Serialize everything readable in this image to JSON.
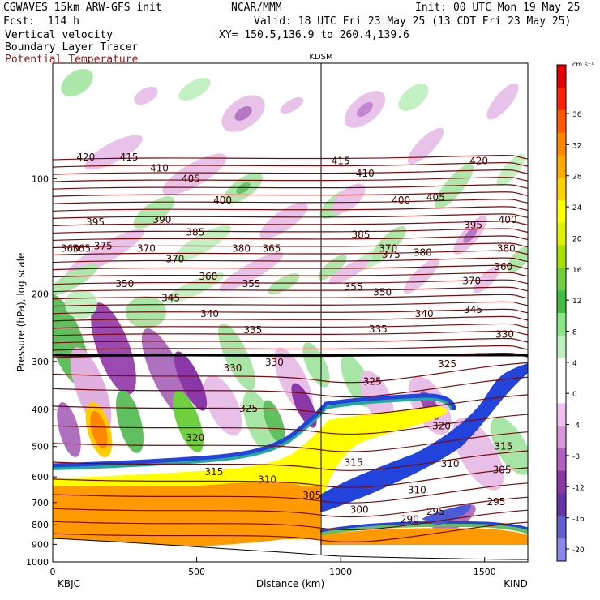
{
  "header": {
    "model": "CGWAVES 15km ARW-GFS init",
    "org": "NCAR/MMM",
    "init": "Init: 00 UTC Mon 19 May 25",
    "fcst": "Fcst:  114 h",
    "valid": "Valid: 18 UTC Fri 23 May 25 (13 CDT Fri 23 May 25)",
    "field1": "Vertical velocity",
    "xy": "XY= 150.5,136.9 to 260.4,139.6",
    "field2": "Boundary Layer Tracer",
    "field3": "Potential Temperature"
  },
  "colors": {
    "theta": "#7a0a0a",
    "orange": "#ff9900",
    "blue_plume": "#2244dd",
    "purple": "#9940b0"
  },
  "chart_data": {
    "type": "cross-section",
    "title": "",
    "xlabel": "Distance (km)",
    "ylabel": "Pressure (hPa), log scale",
    "x_ticks": [
      "0",
      "500",
      "1000",
      "1500"
    ],
    "y_ticks": [
      "100",
      "200",
      "300",
      "400",
      "500",
      "600",
      "700",
      "800",
      "900",
      "1000"
    ],
    "xlim": [
      0,
      1650
    ],
    "ylim": [
      1000,
      50
    ],
    "y_scale": "log",
    "left_label": "KBJC",
    "right_label": "KIND",
    "marker_label": "KDSM",
    "marker_x_km": 935,
    "colorbar": {
      "unit": "cm s⁻¹",
      "tick_labels": [
        "36",
        "32",
        "28",
        "24",
        "20",
        "16",
        "12",
        "8",
        "4",
        "0",
        "-4",
        "-8",
        "-12",
        "-16",
        "-20"
      ],
      "colors": [
        "#e00000",
        "#ff2200",
        "#ff5a00",
        "#ff8800",
        "#ffaa00",
        "#ffd000",
        "#ffff00",
        "#ddf000",
        "#a8e000",
        "#70d040",
        "#40c040",
        "#88e888",
        "#bff0bf",
        "#ffffff",
        "#ffffff",
        "#f0c0f0",
        "#d898d8",
        "#b060c0",
        "#8a38a8",
        "#6633aa",
        "#6060d0",
        "#8888ee"
      ]
    },
    "theta_labels": [
      {
        "x": 115,
        "p": 88,
        "v": "420"
      },
      {
        "x": 265,
        "p": 88,
        "v": "415"
      },
      {
        "x": 370,
        "p": 94,
        "v": "410"
      },
      {
        "x": 480,
        "p": 100,
        "v": "405"
      },
      {
        "x": 590,
        "p": 114,
        "v": "400"
      },
      {
        "x": 148,
        "p": 130,
        "v": "395"
      },
      {
        "x": 380,
        "p": 128,
        "v": "390"
      },
      {
        "x": 495,
        "p": 138,
        "v": "385"
      },
      {
        "x": 655,
        "p": 152,
        "v": "380"
      },
      {
        "x": 175,
        "p": 150,
        "v": "375"
      },
      {
        "x": 425,
        "p": 162,
        "v": "370"
      },
      {
        "x": 540,
        "p": 180,
        "v": "360"
      },
      {
        "x": 690,
        "p": 188,
        "v": "355"
      },
      {
        "x": 250,
        "p": 188,
        "v": "350"
      },
      {
        "x": 410,
        "p": 205,
        "v": "345"
      },
      {
        "x": 545,
        "p": 225,
        "v": "340"
      },
      {
        "x": 695,
        "p": 248,
        "v": "335"
      },
      {
        "x": 770,
        "p": 302,
        "v": "330"
      },
      {
        "x": 625,
        "p": 312,
        "v": "330"
      },
      {
        "x": 680,
        "p": 398,
        "v": "325"
      },
      {
        "x": 495,
        "p": 475,
        "v": "320"
      },
      {
        "x": 1000,
        "p": 90,
        "v": "415"
      },
      {
        "x": 1085,
        "p": 97,
        "v": "410"
      },
      {
        "x": 1210,
        "p": 114,
        "v": "400"
      },
      {
        "x": 1330,
        "p": 112,
        "v": "405"
      },
      {
        "x": 1460,
        "p": 132,
        "v": "395"
      },
      {
        "x": 1580,
        "p": 128,
        "v": "400"
      },
      {
        "x": 1480,
        "p": 90,
        "v": "420"
      },
      {
        "x": 1070,
        "p": 140,
        "v": "385"
      },
      {
        "x": 1175,
        "p": 158,
        "v": "375"
      },
      {
        "x": 1285,
        "p": 156,
        "v": "380"
      },
      {
        "x": 1565,
        "p": 170,
        "v": "360"
      },
      {
        "x": 1455,
        "p": 185,
        "v": "370"
      },
      {
        "x": 1045,
        "p": 192,
        "v": "355"
      },
      {
        "x": 1145,
        "p": 198,
        "v": "350"
      },
      {
        "x": 1460,
        "p": 220,
        "v": "345"
      },
      {
        "x": 1290,
        "p": 225,
        "v": "340"
      },
      {
        "x": 1130,
        "p": 247,
        "v": "335"
      },
      {
        "x": 1570,
        "p": 255,
        "v": "330"
      },
      {
        "x": 1370,
        "p": 305,
        "v": "325"
      },
      {
        "x": 1110,
        "p": 338,
        "v": "325"
      },
      {
        "x": 1350,
        "p": 442,
        "v": "320"
      },
      {
        "x": 1565,
        "p": 500,
        "v": "315"
      },
      {
        "x": 1380,
        "p": 555,
        "v": "310"
      },
      {
        "x": 1560,
        "p": 575,
        "v": "305"
      },
      {
        "x": 1540,
        "p": 698,
        "v": "295"
      },
      {
        "x": 1265,
        "p": 650,
        "v": "310"
      },
      {
        "x": 1045,
        "p": 550,
        "v": "315"
      },
      {
        "x": 1240,
        "p": 775,
        "v": "290"
      },
      {
        "x": 1330,
        "p": 740,
        "v": "295"
      },
      {
        "x": 1065,
        "p": 730,
        "v": "300"
      },
      {
        "x": 900,
        "p": 670,
        "v": "305"
      },
      {
        "x": 745,
        "p": 610,
        "v": "310"
      },
      {
        "x": 560,
        "p": 582,
        "v": "315"
      },
      {
        "x": 60,
        "p": 152,
        "v": "360"
      },
      {
        "x": 100,
        "p": 152,
        "v": "365"
      },
      {
        "x": 325,
        "p": 152,
        "v": "370"
      },
      {
        "x": 760,
        "p": 152,
        "v": "365"
      },
      {
        "x": 1165,
        "p": 152,
        "v": "370"
      },
      {
        "x": 1575,
        "p": 152,
        "v": "380"
      }
    ]
  }
}
